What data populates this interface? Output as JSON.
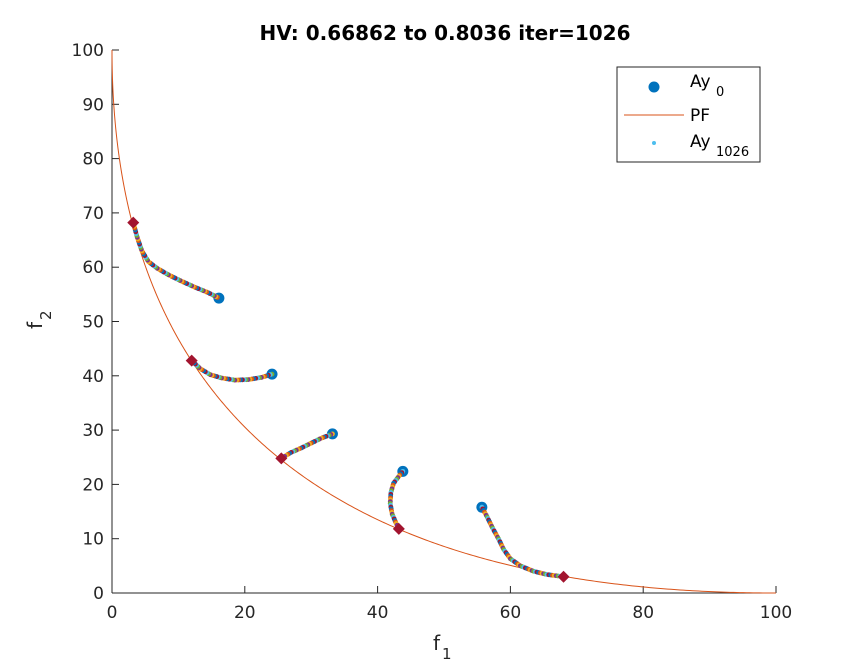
{
  "window": {
    "title": "HV: 0.66862 to 0.8036 iter=1026"
  },
  "chart_data": {
    "type": "scatter",
    "title": "HV: 0.66862 to 0.8036 iter=1026",
    "xlabel": "f",
    "xlabel_sub": "1",
    "ylabel": "f",
    "ylabel_sub": "2",
    "xlim": [
      0,
      100
    ],
    "ylim": [
      0,
      100
    ],
    "xticks": [
      0,
      20,
      40,
      60,
      80,
      100
    ],
    "yticks": [
      0,
      10,
      20,
      30,
      40,
      50,
      60,
      70,
      80,
      90,
      100
    ],
    "grid": false,
    "legend_position": "top-right",
    "legend": [
      {
        "label": "Ay",
        "sub": "0",
        "marker": "circle",
        "color": "#0072BD"
      },
      {
        "label": "PF",
        "sub": "",
        "marker": "line",
        "color": "#D95319"
      },
      {
        "label": "Ay",
        "sub": "1026",
        "marker": "dot",
        "color": "#4DBEEE"
      }
    ],
    "series": [
      {
        "name": "Ay_0",
        "color": "#0072BD",
        "points": [
          [
            16.1,
            54.3
          ],
          [
            24.1,
            40.3
          ],
          [
            33.2,
            29.3
          ],
          [
            43.8,
            22.4
          ],
          [
            55.7,
            15.8
          ]
        ]
      },
      {
        "name": "PF",
        "color": "#D95319",
        "curve": "(1 - sqrt(f1/100))^2 * 100"
      },
      {
        "name": "Ay_1026",
        "color": "#4DBEEE",
        "trajectories": [
          [
            [
              16.1,
              54.3
            ],
            [
              14.5,
              55.3
            ],
            [
              12.5,
              56.3
            ],
            [
              10.5,
              57.4
            ],
            [
              8.5,
              58.6
            ],
            [
              6.8,
              59.8
            ],
            [
              5.5,
              61.0
            ],
            [
              4.5,
              63.0
            ],
            [
              3.8,
              65.5
            ],
            [
              3.2,
              68.2
            ]
          ],
          [
            [
              24.1,
              40.3
            ],
            [
              22.5,
              39.7
            ],
            [
              20.5,
              39.3
            ],
            [
              18.5,
              39.2
            ],
            [
              16.5,
              39.6
            ],
            [
              14.8,
              40.2
            ],
            [
              13.3,
              41.3
            ],
            [
              12.0,
              42.8
            ]
          ],
          [
            [
              33.2,
              29.3
            ],
            [
              31.5,
              28.5
            ],
            [
              30.0,
              27.6
            ],
            [
              28.5,
              26.7
            ],
            [
              27.0,
              25.9
            ],
            [
              25.5,
              24.8
            ]
          ],
          [
            [
              43.8,
              22.4
            ],
            [
              43.2,
              21.5
            ],
            [
              42.4,
              20.2
            ],
            [
              42.0,
              18.5
            ],
            [
              41.9,
              16.5
            ],
            [
              42.2,
              14.5
            ],
            [
              42.8,
              12.8
            ],
            [
              43.2,
              11.8
            ]
          ],
          [
            [
              55.7,
              15.8
            ],
            [
              56.5,
              14.0
            ],
            [
              57.3,
              12.0
            ],
            [
              58.2,
              10.0
            ],
            [
              59.0,
              8.0
            ],
            [
              60.0,
              6.3
            ],
            [
              61.5,
              5.0
            ],
            [
              63.5,
              4.0
            ],
            [
              65.5,
              3.4
            ],
            [
              68.0,
              3.0
            ]
          ]
        ]
      },
      {
        "name": "pareto-targets",
        "color": "#A2142F",
        "points": [
          [
            3.2,
            68.2
          ],
          [
            12.0,
            42.8
          ],
          [
            25.5,
            24.8
          ],
          [
            43.2,
            11.8
          ],
          [
            68.0,
            3.0
          ]
        ]
      }
    ],
    "palette": [
      "#0072BD",
      "#D95319",
      "#EDB120",
      "#7E2F8E",
      "#77AC30",
      "#4DBEEE",
      "#A2142F"
    ]
  }
}
